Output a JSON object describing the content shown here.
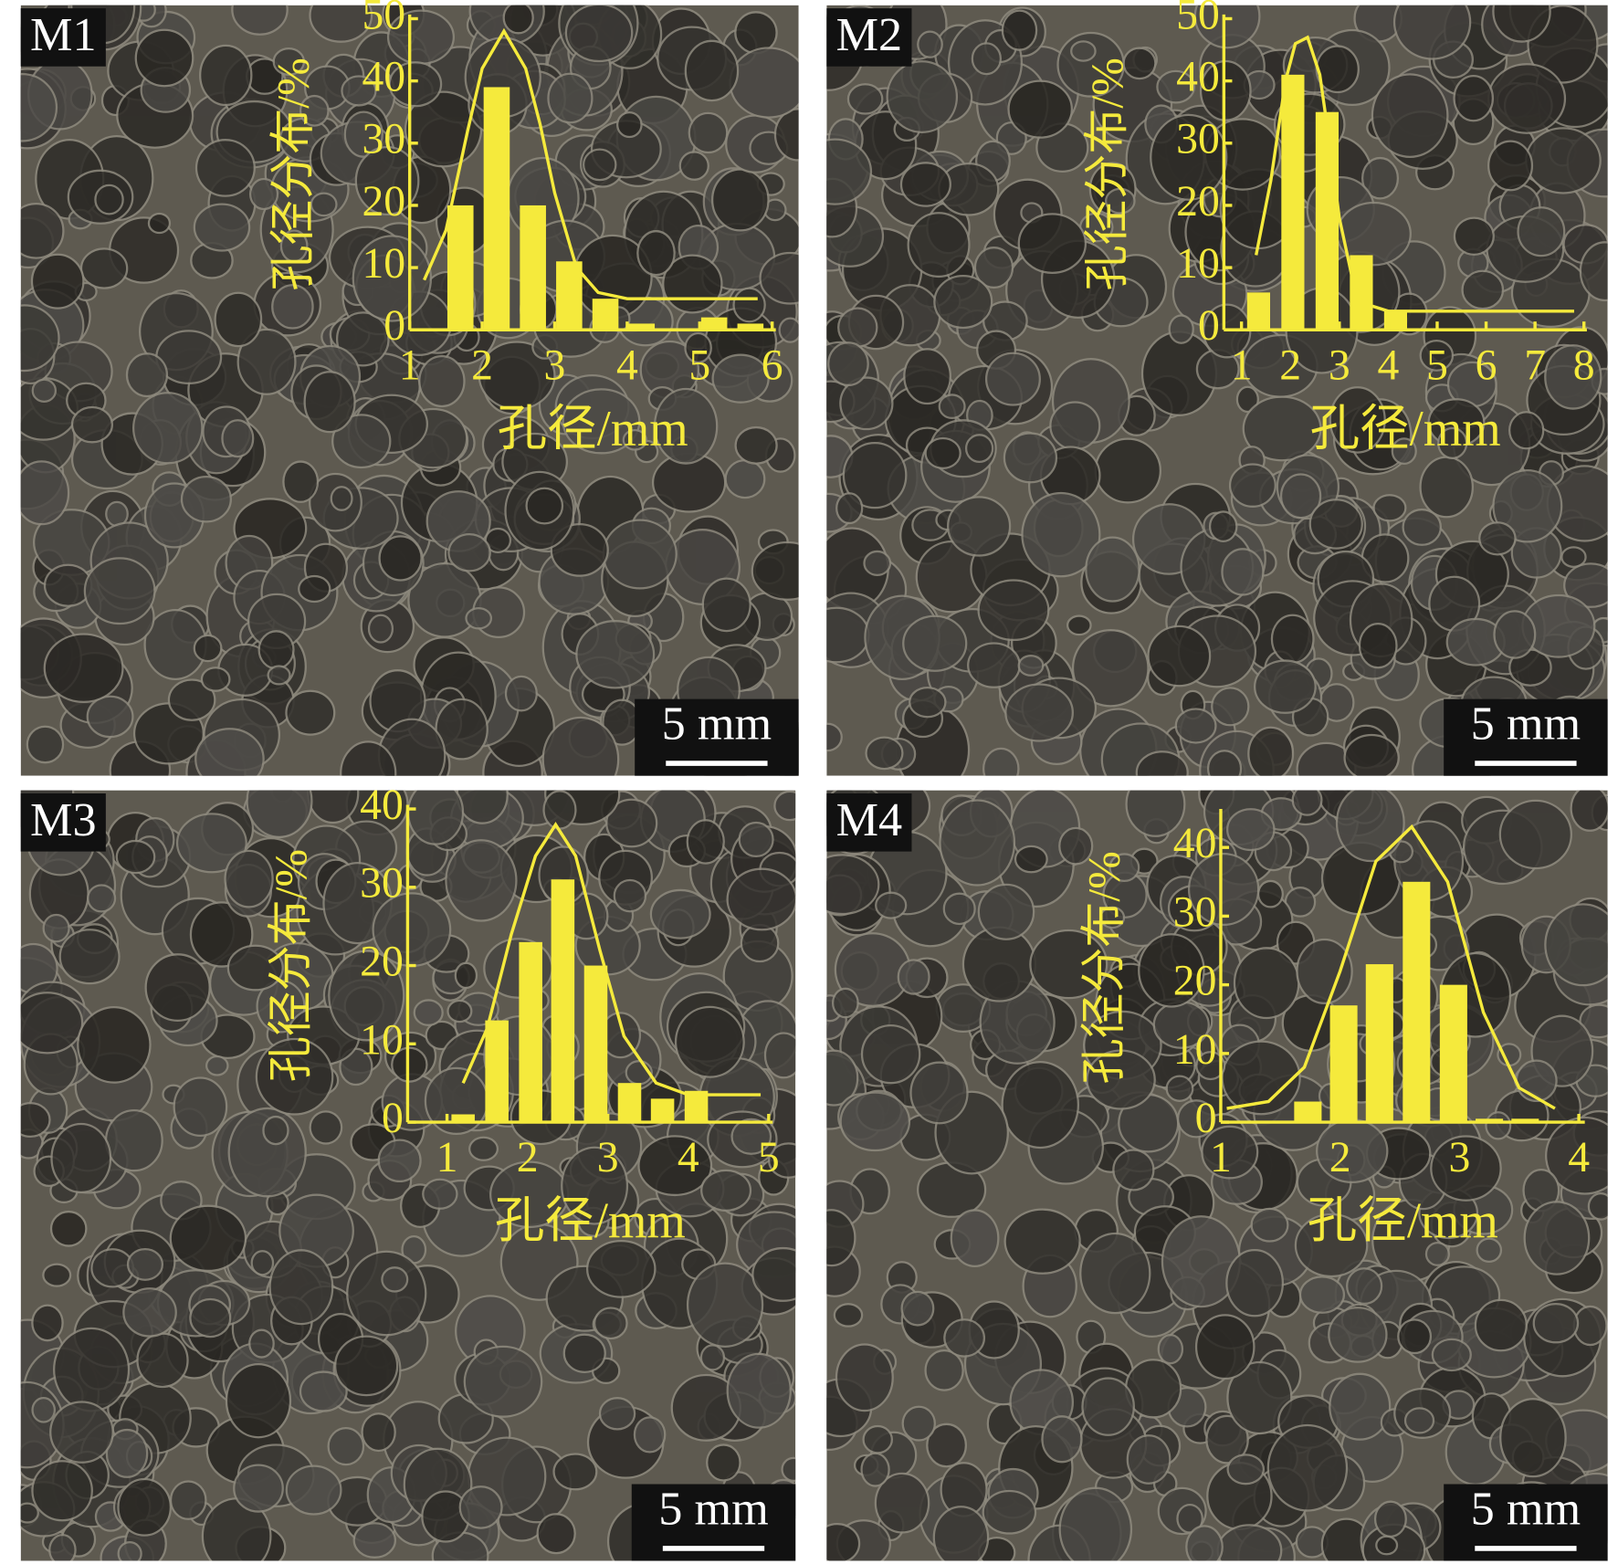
{
  "chart_data": [
    {
      "type": "bar",
      "label": "M1",
      "scale_bar": "5 mm",
      "x_label": "孔径/mm",
      "y_label": "孔径分布/%",
      "color": "#f5ea3c",
      "x": [
        1.7,
        2.2,
        2.7,
        3.2,
        3.7,
        4.2,
        4.7,
        5.2,
        5.7
      ],
      "values": [
        20,
        39,
        20,
        11,
        5,
        1,
        0,
        2,
        1
      ],
      "bar_width": 0.36,
      "curve": {
        "x": [
          1.2,
          1.5,
          1.8,
          2.0,
          2.3,
          2.6,
          2.8,
          3.0,
          3.3,
          3.6,
          4.0,
          5.0,
          5.8
        ],
        "values": [
          8,
          16,
          32,
          42,
          48,
          42,
          33,
          22,
          10,
          6,
          5,
          5,
          5
        ]
      },
      "xlim": [
        1,
        6.05
      ],
      "xticks": [
        1,
        2,
        3,
        4,
        5,
        6
      ],
      "ylim": [
        0,
        50
      ],
      "yticks": [
        0,
        10,
        20,
        30,
        40,
        50
      ]
    },
    {
      "type": "bar",
      "label": "M2",
      "scale_bar": "5 mm",
      "x_label": "孔径/mm",
      "y_label": "孔径分布/%",
      "color": "#f5ea3c",
      "x": [
        1.35,
        2.05,
        2.75,
        3.45,
        4.15
      ],
      "values": [
        6,
        41,
        35,
        12,
        3
      ],
      "bar_width": 0.47,
      "curve": {
        "x": [
          1.3,
          1.6,
          1.9,
          2.1,
          2.35,
          2.6,
          2.8,
          3.0,
          3.3,
          3.6,
          4.0,
          5,
          6,
          7,
          7.8
        ],
        "values": [
          12,
          24,
          40,
          46,
          47,
          41,
          30,
          18,
          7,
          4,
          3,
          3,
          3,
          3,
          3
        ]
      },
      "xlim": [
        0.64,
        8.06
      ],
      "xticks": [
        1,
        2,
        3,
        4,
        5,
        6,
        7,
        8
      ],
      "ylim": [
        0,
        50
      ],
      "yticks": [
        0,
        10,
        20,
        30,
        40,
        50
      ]
    },
    {
      "type": "bar",
      "label": "M3",
      "scale_bar": "5 mm",
      "x_label": "孔径/mm",
      "y_label": "孔径分布/%",
      "color": "#f5ea3c",
      "x": [
        1.2,
        1.62,
        2.04,
        2.44,
        2.85,
        3.27,
        3.68,
        4.1
      ],
      "values": [
        1,
        13,
        23,
        31,
        20,
        5,
        3,
        4
      ],
      "bar_width": 0.29,
      "curve": {
        "x": [
          1.2,
          1.5,
          1.8,
          2.1,
          2.35,
          2.6,
          2.9,
          3.2,
          3.6,
          4.0,
          4.5,
          4.9
        ],
        "values": [
          5,
          12,
          24,
          34,
          38,
          34,
          22,
          11,
          5,
          3.5,
          3.5,
          3.5
        ]
      },
      "xlim": [
        0.51,
        5.05
      ],
      "xticks": [
        1,
        2,
        3,
        4,
        5
      ],
      "ylim": [
        0,
        40
      ],
      "yticks": [
        0,
        10,
        20,
        30,
        40
      ]
    },
    {
      "type": "bar",
      "label": "M4",
      "scale_bar": "5 mm",
      "x_label": "孔径/mm",
      "y_label": "孔径分布/%",
      "color": "#f5ea3c",
      "x": [
        1.73,
        2.03,
        2.33,
        2.64,
        2.95,
        3.25,
        3.55
      ],
      "values": [
        3,
        17,
        23,
        35,
        20,
        0.5,
        0.5
      ],
      "bar_width": 0.23,
      "curve": {
        "x": [
          1.05,
          1.4,
          1.7,
          2.0,
          2.3,
          2.6,
          2.9,
          3.2,
          3.5,
          3.8
        ],
        "values": [
          2,
          3,
          8,
          22,
          38,
          43,
          35,
          16,
          5,
          2
        ]
      },
      "xlim": [
        1,
        4.05
      ],
      "xticks": [
        1,
        2,
        3,
        4
      ],
      "ylim": [
        0,
        45
      ],
      "yticks": [
        0,
        10,
        20,
        30,
        40
      ]
    }
  ]
}
